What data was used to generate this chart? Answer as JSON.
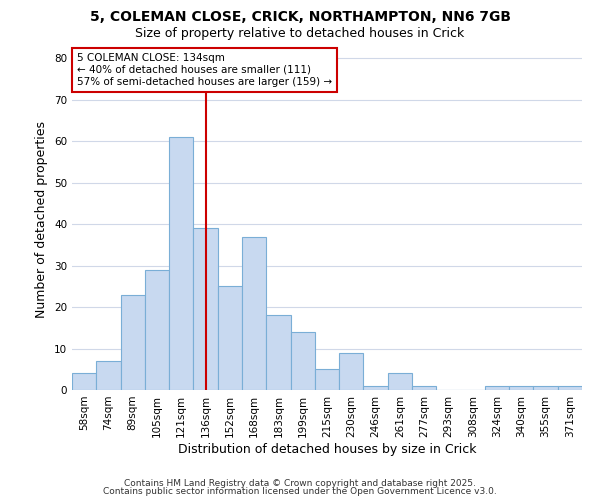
{
  "title_line1": "5, COLEMAN CLOSE, CRICK, NORTHAMPTON, NN6 7GB",
  "title_line2": "Size of property relative to detached houses in Crick",
  "xlabel": "Distribution of detached houses by size in Crick",
  "ylabel": "Number of detached properties",
  "categories": [
    "58sqm",
    "74sqm",
    "89sqm",
    "105sqm",
    "121sqm",
    "136sqm",
    "152sqm",
    "168sqm",
    "183sqm",
    "199sqm",
    "215sqm",
    "230sqm",
    "246sqm",
    "261sqm",
    "277sqm",
    "293sqm",
    "308sqm",
    "324sqm",
    "340sqm",
    "355sqm",
    "371sqm"
  ],
  "values": [
    4,
    7,
    23,
    29,
    61,
    39,
    25,
    37,
    18,
    14,
    5,
    9,
    1,
    4,
    1,
    0,
    0,
    1,
    1,
    1,
    1
  ],
  "bar_color": "#c8d9f0",
  "bar_edge_color": "#7aaed6",
  "vline_x_index": 5,
  "vline_color": "#cc0000",
  "annotation_text": "5 COLEMAN CLOSE: 134sqm\n← 40% of detached houses are smaller (111)\n57% of semi-detached houses are larger (159) →",
  "annotation_box_color": "#ffffff",
  "annotation_box_edge": "#cc0000",
  "ylim": [
    0,
    82
  ],
  "yticks": [
    0,
    10,
    20,
    30,
    40,
    50,
    60,
    70,
    80
  ],
  "background_color": "#ffffff",
  "grid_color": "#d0d8e8",
  "footer_line1": "Contains HM Land Registry data © Crown copyright and database right 2025.",
  "footer_line2": "Contains public sector information licensed under the Open Government Licence v3.0.",
  "title_fontsize": 10,
  "subtitle_fontsize": 9,
  "axis_label_fontsize": 9,
  "tick_fontsize": 7.5,
  "footer_fontsize": 6.5,
  "annotation_fontsize": 7.5
}
